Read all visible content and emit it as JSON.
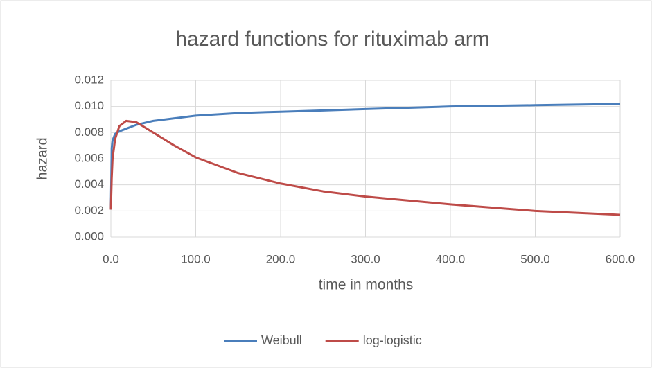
{
  "chart_data": {
    "type": "line",
    "title": "hazard functions for rituximab arm",
    "x_label": "time in months",
    "y_label": "hazard",
    "x": [
      0,
      1,
      2,
      5,
      10,
      18,
      30,
      50,
      75,
      100,
      150,
      200,
      250,
      300,
      400,
      500,
      600
    ],
    "series": [
      {
        "name": "Weibull",
        "color": "#4a7ebb",
        "values": [
          0.0021,
          0.0068,
          0.0074,
          0.0079,
          0.0081,
          0.0083,
          0.0086,
          0.0089,
          0.0091,
          0.0093,
          0.0095,
          0.0096,
          0.0097,
          0.0098,
          0.01,
          0.0101,
          0.0102
        ]
      },
      {
        "name": "log-logistic",
        "color": "#be4b48",
        "values": [
          0.0021,
          0.0045,
          0.006,
          0.0075,
          0.0085,
          0.0089,
          0.0088,
          0.008,
          0.007,
          0.0061,
          0.0049,
          0.0041,
          0.0035,
          0.0031,
          0.0025,
          0.002,
          0.0017
        ]
      }
    ],
    "xlim": [
      0,
      600
    ],
    "xticks": [
      {
        "value": 0,
        "label": "0.0"
      },
      {
        "value": 100,
        "label": "100.0"
      },
      {
        "value": 200,
        "label": "200.0"
      },
      {
        "value": 300,
        "label": "300.0"
      },
      {
        "value": 400,
        "label": "400.0"
      },
      {
        "value": 500,
        "label": "500.0"
      },
      {
        "value": 600,
        "label": "600.0"
      }
    ],
    "ylim": [
      0,
      0.012
    ],
    "yticks": [
      {
        "value": 0,
        "label": "0.000"
      },
      0.002,
      0.004,
      0.006,
      0.008,
      {
        "value": 0.01,
        "label": "0.010"
      },
      0.012
    ],
    "grid": true,
    "legend": "bottom"
  }
}
